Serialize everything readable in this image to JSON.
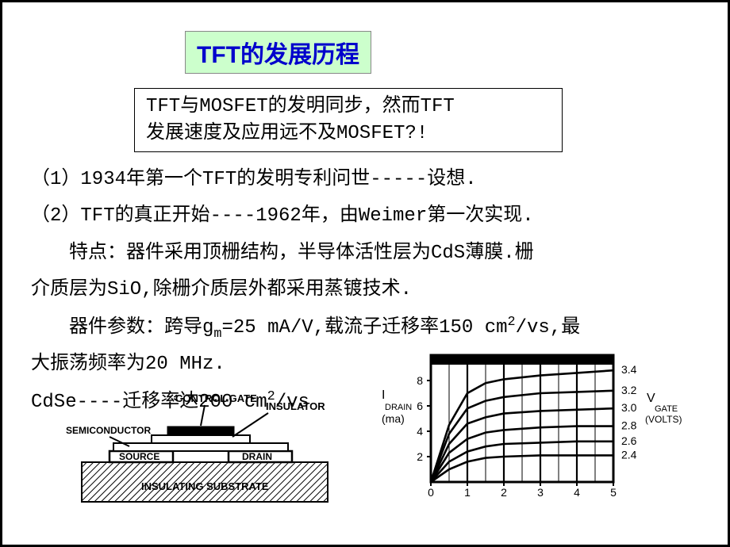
{
  "title": "TFT的发展历程",
  "intro_line1": "TFT与MOSFET的发明同步，然而TFT",
  "intro_line2": "发展速度及应用远不及MOSFET?!",
  "para1": "（1）1934年第一个TFT的发明专利问世-----设想.",
  "para2": "（2）TFT的真正开始----1962年，由Weimer第一次实现.",
  "para3a": "　　特点：器件采用顶栅结构，半导体活性层为CdS薄膜.栅",
  "para3b": "介质层为SiO,除栅介质层外都采用蒸镀技术.",
  "para4a_pre": "　　器件参数：跨导g",
  "para4a_sub": "m",
  "para4a_mid": "=25 mA/V,载流子迁移率150 cm",
  "para4a_sup": "2",
  "para4a_post": "/vs,最",
  "para4b": "大振荡频率为20 MHz.",
  "para5_pre": "CdSe----迁移率达200 cm",
  "para5_sup": "2",
  "para5_post": "/vs",
  "device": {
    "labels": {
      "control_gate": "CONTROL GATE",
      "insulator": "INSULATOR",
      "semiconductor": "SEMICONDUCTOR",
      "source": "SOURCE",
      "drain": "DRAIN",
      "substrate": "INSULATING SUBSTRATE"
    },
    "colors": {
      "line": "#000000",
      "fill_white": "#ffffff",
      "hatch": "#000000"
    }
  },
  "chart": {
    "type": "line",
    "title_y": "I",
    "title_y_sub": "DRAIN",
    "title_y_unit": "(ma)",
    "title_right": "V",
    "title_right_sub": "GATE",
    "title_right_unit": "(VOLTS)",
    "xlim": [
      0,
      5
    ],
    "ylim": [
      0,
      10
    ],
    "xticks": [
      0,
      1,
      2,
      3,
      4,
      5
    ],
    "yticks": [
      2,
      4,
      6,
      8
    ],
    "series": [
      {
        "label": "3.4",
        "points": [
          [
            0,
            0
          ],
          [
            0.5,
            4.5
          ],
          [
            1,
            7.0
          ],
          [
            1.5,
            7.8
          ],
          [
            2,
            8.1
          ],
          [
            3,
            8.4
          ],
          [
            4,
            8.6
          ],
          [
            5,
            8.8
          ]
        ]
      },
      {
        "label": "3.2",
        "points": [
          [
            0,
            0
          ],
          [
            0.5,
            3.8
          ],
          [
            1,
            5.8
          ],
          [
            1.5,
            6.4
          ],
          [
            2,
            6.7
          ],
          [
            3,
            7.0
          ],
          [
            4,
            7.1
          ],
          [
            5,
            7.2
          ]
        ]
      },
      {
        "label": "3.0",
        "points": [
          [
            0,
            0
          ],
          [
            0.5,
            3.0
          ],
          [
            1,
            4.6
          ],
          [
            1.5,
            5.1
          ],
          [
            2,
            5.4
          ],
          [
            3,
            5.6
          ],
          [
            4,
            5.7
          ],
          [
            5,
            5.8
          ]
        ]
      },
      {
        "label": "2.8",
        "points": [
          [
            0,
            0
          ],
          [
            0.5,
            2.3
          ],
          [
            1,
            3.4
          ],
          [
            1.5,
            3.9
          ],
          [
            2,
            4.1
          ],
          [
            3,
            4.3
          ],
          [
            4,
            4.4
          ],
          [
            5,
            4.4
          ]
        ]
      },
      {
        "label": "2.6",
        "points": [
          [
            0,
            0
          ],
          [
            0.5,
            1.6
          ],
          [
            1,
            2.4
          ],
          [
            1.5,
            2.8
          ],
          [
            2,
            3.0
          ],
          [
            3,
            3.1
          ],
          [
            4,
            3.2
          ],
          [
            5,
            3.2
          ]
        ]
      },
      {
        "label": "2.4",
        "points": [
          [
            0,
            0
          ],
          [
            0.5,
            1.0
          ],
          [
            1,
            1.6
          ],
          [
            1.5,
            1.9
          ],
          [
            2,
            2.0
          ],
          [
            3,
            2.1
          ],
          [
            4,
            2.1
          ],
          [
            5,
            2.1
          ]
        ]
      }
    ],
    "colors": {
      "bg": "#ffffff",
      "grid": "#000000",
      "line": "#000000",
      "text": "#000000",
      "frame": "#000000"
    },
    "line_width": 2.6,
    "label_fontsize": 14,
    "tick_fontsize": 14
  }
}
